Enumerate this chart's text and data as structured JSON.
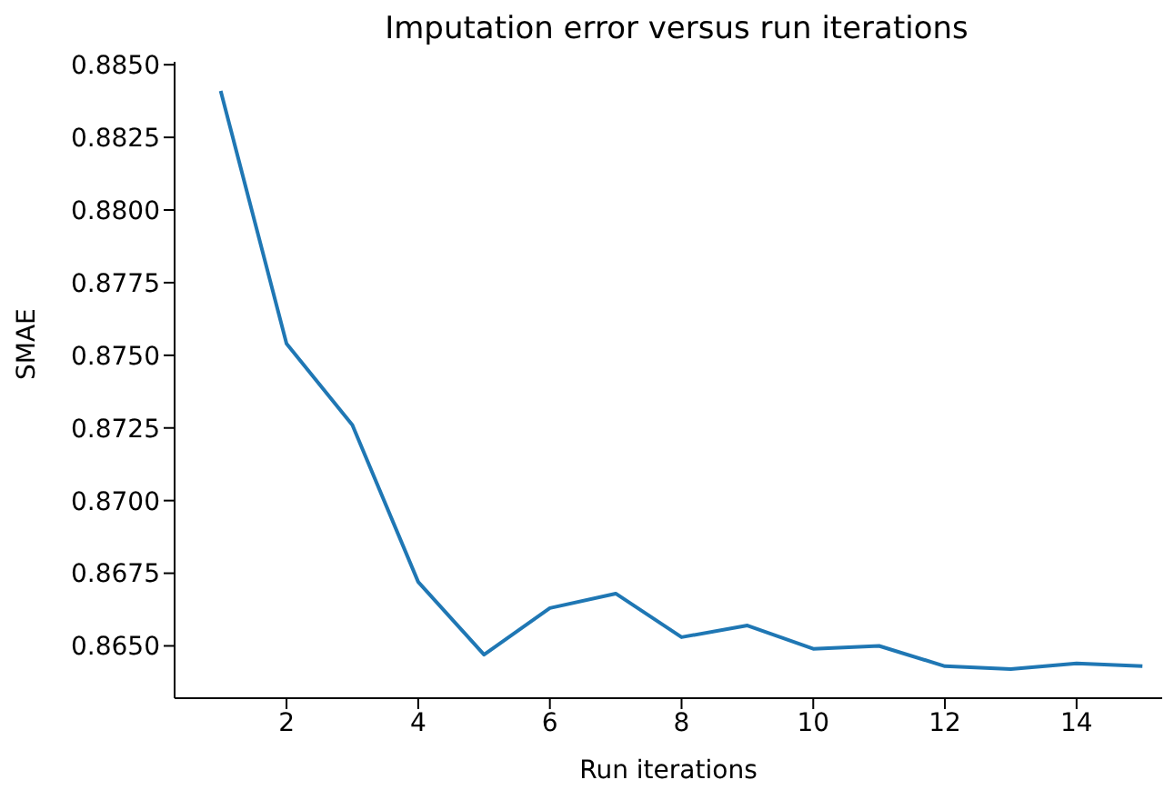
{
  "chart_data": {
    "type": "line",
    "title": "Imputation error versus run iterations",
    "xlabel": "Run iterations",
    "ylabel": "SMAE",
    "x": [
      1,
      2,
      3,
      4,
      5,
      6,
      7,
      8,
      9,
      10,
      11,
      12,
      13,
      14,
      15
    ],
    "series": [
      {
        "color": "#1f77b4",
        "values": [
          0.8841,
          0.8754,
          0.8726,
          0.8672,
          0.8647,
          0.8663,
          0.8668,
          0.8653,
          0.8657,
          0.8649,
          0.865,
          0.8643,
          0.8642,
          0.8644,
          0.8643
        ]
      }
    ],
    "xlim": [
      0.3,
      15.3
    ],
    "xticks": [
      2,
      4,
      6,
      8,
      10,
      12,
      14
    ],
    "ylim": [
      0.8632,
      0.8851
    ],
    "yticks": [
      {
        "value": 0.865,
        "label": "0.8650"
      },
      {
        "value": 0.8675,
        "label": "0.8675"
      },
      {
        "value": 0.87,
        "label": "0.8700"
      },
      {
        "value": 0.8725,
        "label": "0.8725"
      },
      {
        "value": 0.875,
        "label": "0.8750"
      },
      {
        "value": 0.8775,
        "label": "0.8775"
      },
      {
        "value": 0.88,
        "label": "0.8800"
      },
      {
        "value": 0.8825,
        "label": "0.8825"
      },
      {
        "value": 0.885,
        "label": "0.8850"
      }
    ],
    "grid": false,
    "legend": false,
    "marker": "none",
    "line_style": "solid"
  }
}
